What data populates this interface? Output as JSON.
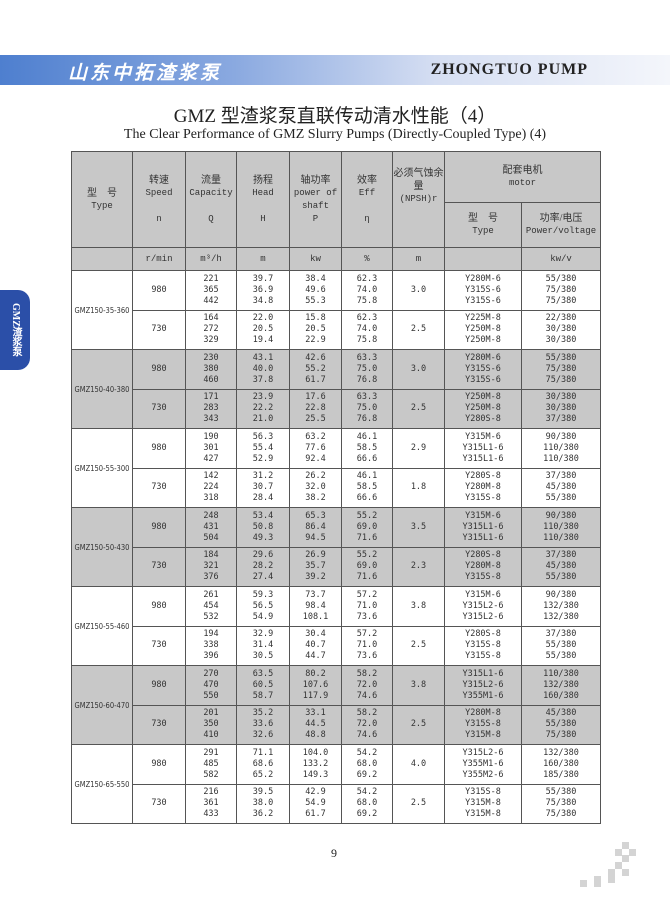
{
  "header": {
    "brand_cn": "山东中拓渣浆泵",
    "brand_en": "ZHONGTUO  PUMP"
  },
  "title_cn": "GMZ 型渣浆泵直联传动清水性能（4）",
  "title_en": "The Clear Performance of GMZ Slurry Pumps (Directly-Coupled Type) (4)",
  "side_tab": "GMZ渣浆泵",
  "table": {
    "headers": {
      "type": {
        "cn": "型　号",
        "en": "Type"
      },
      "speed": {
        "cn": "转速",
        "en": "Speed",
        "sym": "n",
        "unit": "r/min"
      },
      "capacity": {
        "cn": "流量",
        "en": "Capacity",
        "sym": "Q",
        "unit": "m³/h"
      },
      "head": {
        "cn": "扬程",
        "en": "Head",
        "sym": "H",
        "unit": "m"
      },
      "power": {
        "cn": "轴功率",
        "en": "power of shaft",
        "sym": "P",
        "unit": "kw"
      },
      "eff": {
        "cn": "效率",
        "en": "Eff",
        "sym": "η",
        "unit": "%"
      },
      "npsh": {
        "cn": "必须气蚀余量",
        "en": "(NPSH)r",
        "unit": "m"
      },
      "motor": {
        "cn": "配套电机",
        "en": "motor"
      },
      "motor_type": {
        "cn": "型　号",
        "en": "Type"
      },
      "motor_power": {
        "cn": "功率/电压",
        "en": "Power/voltage",
        "unit": "kw/v"
      }
    },
    "groups": [
      {
        "model": "GMZ150-35-360",
        "rows": [
          {
            "speed": "980",
            "q": [
              "221",
              "365",
              "442"
            ],
            "h": [
              "39.7",
              "36.9",
              "34.8"
            ],
            "p": [
              "38.4",
              "49.6",
              "55.3"
            ],
            "eff": [
              "62.3",
              "74.0",
              "75.8"
            ],
            "npsh": "3.0",
            "motor": [
              "Y280M-6",
              "Y315S-6",
              "Y315S-6"
            ],
            "pv": [
              "55/380",
              "75/380",
              "75/380"
            ]
          },
          {
            "speed": "730",
            "q": [
              "164",
              "272",
              "329"
            ],
            "h": [
              "22.0",
              "20.5",
              "19.4"
            ],
            "p": [
              "15.8",
              "20.5",
              "22.9"
            ],
            "eff": [
              "62.3",
              "74.0",
              "75.8"
            ],
            "npsh": "2.5",
            "motor": [
              "Y225M-8",
              "Y250M-8",
              "Y250M-8"
            ],
            "pv": [
              "22/380",
              "30/380",
              "30/380"
            ]
          }
        ]
      },
      {
        "model": "GMZ150-40-380",
        "rows": [
          {
            "speed": "980",
            "q": [
              "230",
              "380",
              "460"
            ],
            "h": [
              "43.1",
              "40.0",
              "37.8"
            ],
            "p": [
              "42.6",
              "55.2",
              "61.7"
            ],
            "eff": [
              "63.3",
              "75.0",
              "76.8"
            ],
            "npsh": "3.0",
            "motor": [
              "Y280M-6",
              "Y315S-6",
              "Y315S-6"
            ],
            "pv": [
              "55/380",
              "75/380",
              "75/380"
            ]
          },
          {
            "speed": "730",
            "q": [
              "171",
              "283",
              "343"
            ],
            "h": [
              "23.9",
              "22.2",
              "21.0"
            ],
            "p": [
              "17.6",
              "22.8",
              "25.5"
            ],
            "eff": [
              "63.3",
              "75.0",
              "76.8"
            ],
            "npsh": "2.5",
            "motor": [
              "Y250M-8",
              "Y250M-8",
              "Y280S-8"
            ],
            "pv": [
              "30/380",
              "30/380",
              "37/380"
            ]
          }
        ]
      },
      {
        "model": "GMZ150-55-300",
        "rows": [
          {
            "speed": "980",
            "q": [
              "190",
              "301",
              "427"
            ],
            "h": [
              "56.3",
              "55.4",
              "52.9"
            ],
            "p": [
              "63.2",
              "77.6",
              "92.4"
            ],
            "eff": [
              "46.1",
              "58.5",
              "66.6"
            ],
            "npsh": "2.9",
            "motor": [
              "Y315M-6",
              "Y315L1-6",
              "Y315L1-6"
            ],
            "pv": [
              "90/380",
              "110/380",
              "110/380"
            ]
          },
          {
            "speed": "730",
            "q": [
              "142",
              "224",
              "318"
            ],
            "h": [
              "31.2",
              "30.7",
              "28.4"
            ],
            "p": [
              "26.2",
              "32.0",
              "38.2"
            ],
            "eff": [
              "46.1",
              "58.5",
              "66.6"
            ],
            "npsh": "1.8",
            "motor": [
              "Y280S-8",
              "Y280M-8",
              "Y315S-8"
            ],
            "pv": [
              "37/380",
              "45/380",
              "55/380"
            ]
          }
        ]
      },
      {
        "model": "GMZ150-50-430",
        "rows": [
          {
            "speed": "980",
            "q": [
              "248",
              "431",
              "504"
            ],
            "h": [
              "53.4",
              "50.8",
              "49.3"
            ],
            "p": [
              "65.3",
              "86.4",
              "94.5"
            ],
            "eff": [
              "55.2",
              "69.0",
              "71.6"
            ],
            "npsh": "3.5",
            "motor": [
              "Y315M-6",
              "Y315L1-6",
              "Y315L1-6"
            ],
            "pv": [
              "90/380",
              "110/380",
              "110/380"
            ]
          },
          {
            "speed": "730",
            "q": [
              "184",
              "321",
              "376"
            ],
            "h": [
              "29.6",
              "28.2",
              "27.4"
            ],
            "p": [
              "26.9",
              "35.7",
              "39.2"
            ],
            "eff": [
              "55.2",
              "69.0",
              "71.6"
            ],
            "npsh": "2.3",
            "motor": [
              "Y280S-8",
              "Y280M-8",
              "Y315S-8"
            ],
            "pv": [
              "37/380",
              "45/380",
              "55/380"
            ]
          }
        ]
      },
      {
        "model": "GMZ150-55-460",
        "rows": [
          {
            "speed": "980",
            "q": [
              "261",
              "454",
              "532"
            ],
            "h": [
              "59.3",
              "56.5",
              "54.9"
            ],
            "p": [
              "73.7",
              "98.4",
              "108.1"
            ],
            "eff": [
              "57.2",
              "71.0",
              "73.6"
            ],
            "npsh": "3.8",
            "motor": [
              "Y315M-6",
              "Y315L2-6",
              "Y315L2-6"
            ],
            "pv": [
              "90/380",
              "132/380",
              "132/380"
            ]
          },
          {
            "speed": "730",
            "q": [
              "194",
              "338",
              "396"
            ],
            "h": [
              "32.9",
              "31.4",
              "30.5"
            ],
            "p": [
              "30.4",
              "40.7",
              "44.7"
            ],
            "eff": [
              "57.2",
              "71.0",
              "73.6"
            ],
            "npsh": "2.5",
            "motor": [
              "Y280S-8",
              "Y315S-8",
              "Y315S-8"
            ],
            "pv": [
              "37/380",
              "55/380",
              "55/380"
            ]
          }
        ]
      },
      {
        "model": "GMZ150-60-470",
        "rows": [
          {
            "speed": "980",
            "q": [
              "270",
              "470",
              "550"
            ],
            "h": [
              "63.5",
              "60.5",
              "58.7"
            ],
            "p": [
              "80.2",
              "107.6",
              "117.9"
            ],
            "eff": [
              "58.2",
              "72.0",
              "74.6"
            ],
            "npsh": "3.8",
            "motor": [
              "Y315L1-6",
              "Y315L2-6",
              "Y355M1-6"
            ],
            "pv": [
              "110/380",
              "132/380",
              "160/380"
            ]
          },
          {
            "speed": "730",
            "q": [
              "201",
              "350",
              "410"
            ],
            "h": [
              "35.2",
              "33.6",
              "32.6"
            ],
            "p": [
              "33.1",
              "44.5",
              "48.8"
            ],
            "eff": [
              "58.2",
              "72.0",
              "74.6"
            ],
            "npsh": "2.5",
            "motor": [
              "Y280M-8",
              "Y315S-8",
              "Y315M-8"
            ],
            "pv": [
              "45/380",
              "55/380",
              "75/380"
            ]
          }
        ]
      },
      {
        "model": "GMZ150-65-550",
        "rows": [
          {
            "speed": "980",
            "q": [
              "291",
              "485",
              "582"
            ],
            "h": [
              "71.1",
              "68.6",
              "65.2"
            ],
            "p": [
              "104.0",
              "133.2",
              "149.3"
            ],
            "eff": [
              "54.2",
              "68.0",
              "69.2"
            ],
            "npsh": "4.0",
            "motor": [
              "Y315L2-6",
              "Y355M1-6",
              "Y355M2-6"
            ],
            "pv": [
              "132/380",
              "160/380",
              "185/380"
            ]
          },
          {
            "speed": "730",
            "q": [
              "216",
              "361",
              "433"
            ],
            "h": [
              "39.5",
              "38.0",
              "36.2"
            ],
            "p": [
              "42.9",
              "54.9",
              "61.7"
            ],
            "eff": [
              "54.2",
              "68.0",
              "69.2"
            ],
            "npsh": "2.5",
            "motor": [
              "Y315S-8",
              "Y315M-8",
              "Y315M-8"
            ],
            "pv": [
              "55/380",
              "75/380",
              "75/380"
            ]
          }
        ]
      }
    ],
    "shade_color": "#c8c8c8"
  },
  "page_number": "9",
  "colors": {
    "banner_start": "#4e7fcf",
    "side_tab": "#2b4fa8"
  }
}
